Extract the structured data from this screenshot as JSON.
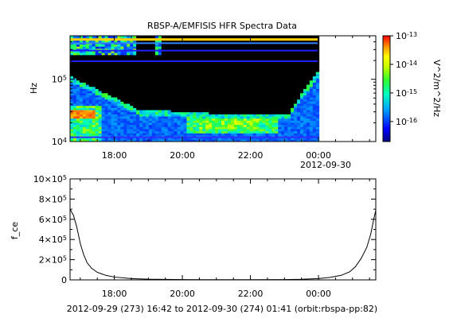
{
  "chart_data": [
    {
      "type": "heatmap",
      "title": "RBSP-A/EMFISIS  HFR Spectra Data",
      "ylabel": "Hz",
      "yscale": "log",
      "ylim": [
        10000,
        500000
      ],
      "y_ticks": [
        {
          "value": 10000,
          "base": "10",
          "exp": "4"
        },
        {
          "value": 100000,
          "base": "10",
          "exp": "5"
        }
      ],
      "x_ticks": [
        "18:00",
        "20:00",
        "22:00",
        "00:00"
      ],
      "x_date_label": "2012-09-30",
      "xlim": [
        "2012-09-29 16:42",
        "2012-09-30 01:41"
      ],
      "colorbar": {
        "label": "V^2/m^2/Hz",
        "scale": "log",
        "range": [
          2e-17,
          1e-13
        ],
        "ticks": [
          {
            "base": "10",
            "exp": "-13"
          },
          {
            "base": "10",
            "exp": "-14"
          },
          {
            "base": "10",
            "exp": "-15"
          },
          {
            "base": "10",
            "exp": "-16"
          }
        ]
      }
    },
    {
      "type": "line",
      "ylabel": "f_ce",
      "ylim": [
        0,
        1000000
      ],
      "y_ticks": [
        {
          "value": 0,
          "label": "0"
        },
        {
          "value": 200000,
          "mant": "2",
          "base": "10",
          "exp": "5"
        },
        {
          "value": 400000,
          "mant": "4",
          "base": "10",
          "exp": "5"
        },
        {
          "value": 600000,
          "mant": "6",
          "base": "10",
          "exp": "5"
        },
        {
          "value": 800000,
          "mant": "8",
          "base": "10",
          "exp": "5"
        },
        {
          "value": 1000000,
          "mant": "10",
          "base": "10",
          "exp": "5"
        }
      ],
      "x_ticks": [
        "18:00",
        "20:00",
        "22:00",
        "00:00"
      ],
      "xlim": [
        "2012-09-29 16:42",
        "2012-09-30 01:41"
      ],
      "series": [
        {
          "x": [
            "2012-09-29 16:42",
            "2012-09-29 16:48",
            "2012-09-29 16:54",
            "2012-09-29 17:00",
            "2012-09-29 17:06",
            "2012-09-29 17:12",
            "2012-09-29 17:20",
            "2012-09-29 17:30",
            "2012-09-29 17:45",
            "2012-09-29 18:00",
            "2012-09-29 18:30",
            "2012-09-29 19:00",
            "2012-09-29 20:00",
            "2012-09-29 21:00",
            "2012-09-29 22:00",
            "2012-09-29 23:00",
            "2012-09-29 23:30",
            "2012-09-30 00:00",
            "2012-09-30 00:20",
            "2012-09-30 00:40",
            "2012-09-30 00:55",
            "2012-09-30 01:05",
            "2012-09-30 01:15",
            "2012-09-30 01:25",
            "2012-09-30 01:32",
            "2012-09-30 01:37",
            "2012-09-30 01:41"
          ],
          "y": [
            700000,
            640000,
            520000,
            360000,
            250000,
            170000,
            115000,
            75000,
            45000,
            28000,
            13000,
            7000,
            3000,
            1500,
            1500,
            3000,
            6000,
            13000,
            25000,
            45000,
            80000,
            130000,
            210000,
            320000,
            450000,
            590000,
            690000
          ]
        }
      ]
    }
  ],
  "footer": "2012-09-29 (273) 16:42 to 2012-09-30 (274) 01:41 (orbit:rbspa-pp:82)"
}
